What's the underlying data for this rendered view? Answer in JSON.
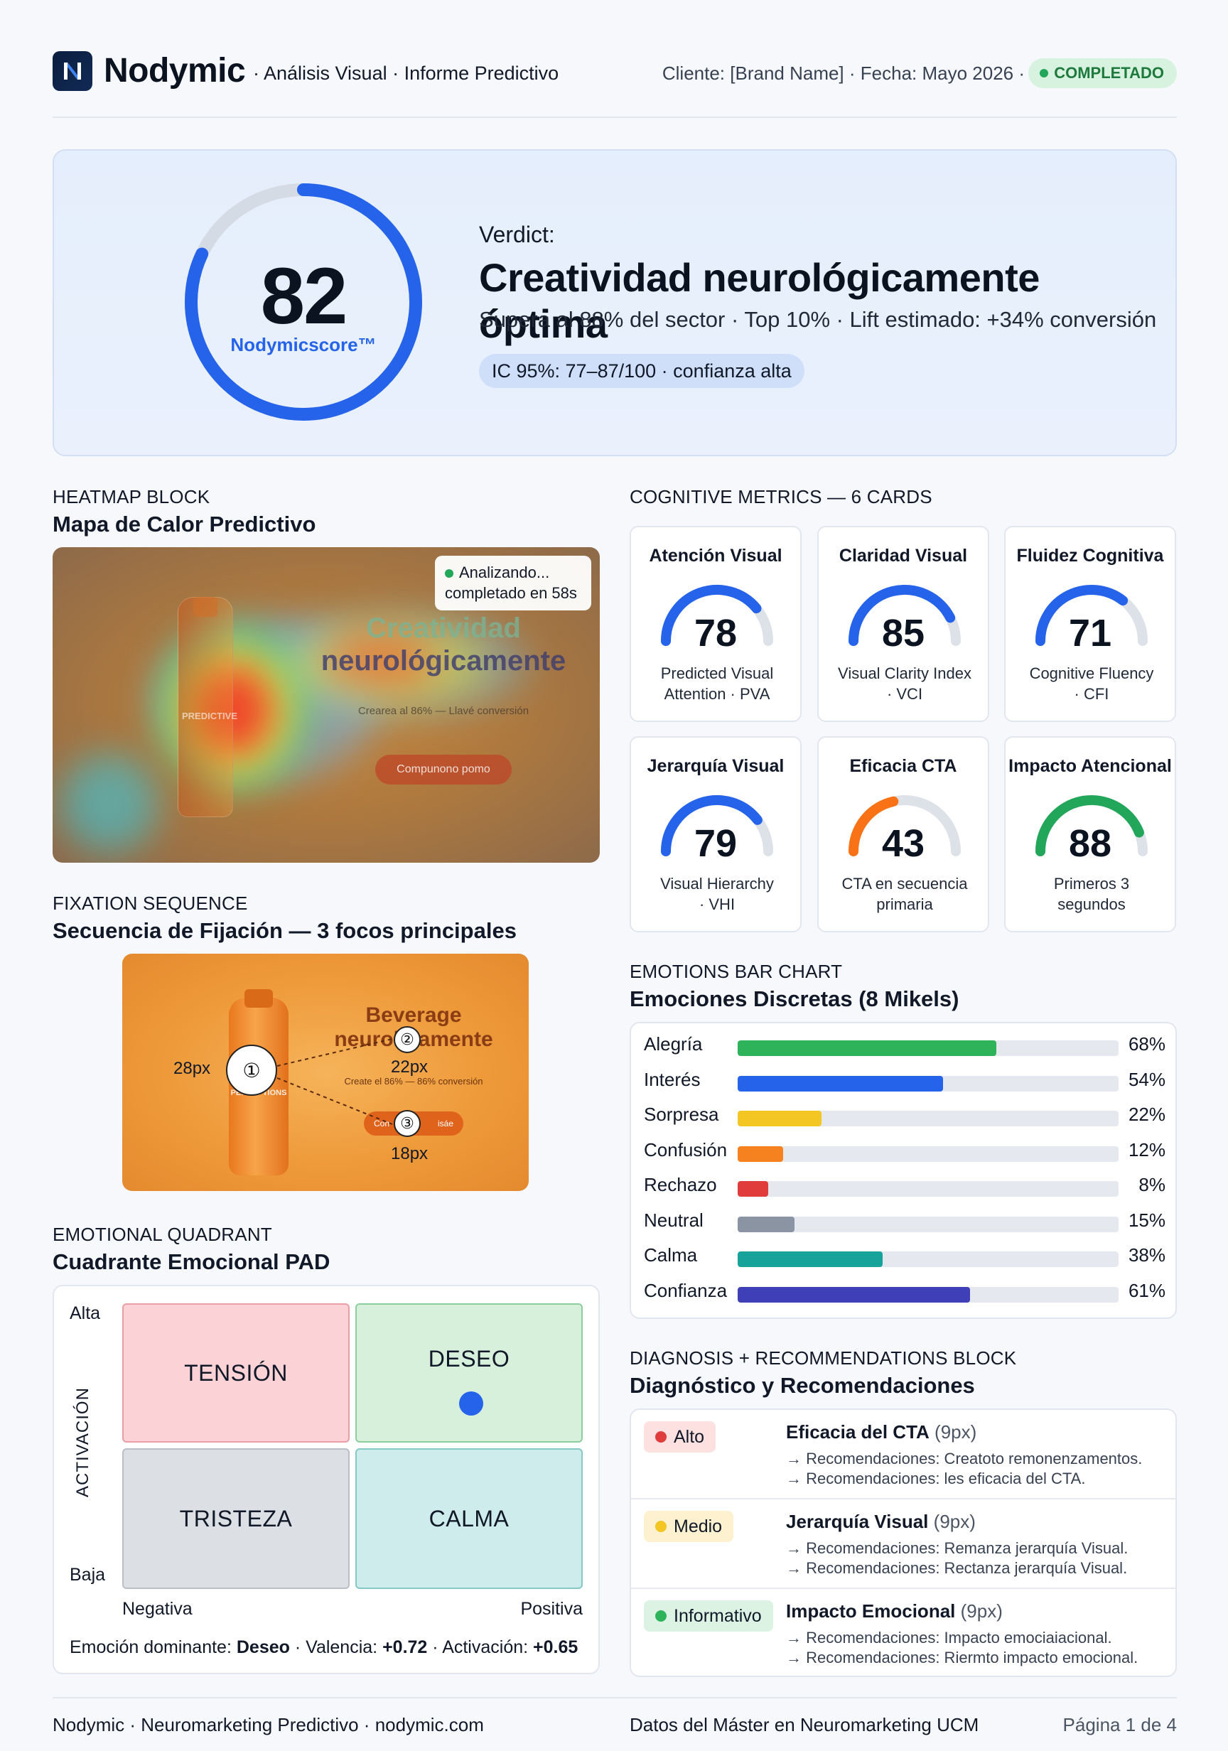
{
  "header": {
    "brand": "Nodymic",
    "subtitle": "· Análisis Visual · Informe Predictivo",
    "meta": "Cliente: [Brand Name] · Fecha: Mayo 2026 ·",
    "status": "COMPLETADO",
    "status_color": "#1d7a3c"
  },
  "hero": {
    "score": "82",
    "score_value": 82,
    "score_label": "Nodymicscore™",
    "verdict_label": "Verdict:",
    "verdict_title": "Creatividad neurológicamente óptima",
    "verdict_sub": "Supera al 88% del sector · Top 10% · Lift estimado: +34% conversión",
    "ci": "IC 95%: 77–87/100 · confianza alta",
    "accent": "#2563eb"
  },
  "heatmap": {
    "eyebrow": "HEATMAP BLOCK",
    "title": "Mapa de Calor Predictivo",
    "analyzing_line1": "Analizando...",
    "analyzing_line2": "completado en 58s",
    "ad_headline_1": "Creatividad",
    "ad_headline_2": "neurológicamente",
    "ad_subline": "Crearea al 86% — Llavé conversión",
    "ad_button": "Compunono pomo",
    "ad_bottle_text": "PREDICTIVE"
  },
  "fixation": {
    "eyebrow": "FIXATION SEQUENCE",
    "title": "Secuencia de Fijación — 3 focos principales",
    "ad_headline_1": "Beverage",
    "ad_headline_2": "neurolo amente",
    "ad_subline": "Create el 86% — 86% conversión",
    "ad_button": "Con",
    "ad_button_tail": "isáe",
    "ad_bottle_text": "PERCEPTIONS",
    "points": [
      {
        "num": "①",
        "label": "28px"
      },
      {
        "num": "②",
        "label": "22px"
      },
      {
        "num": "③",
        "label": "18px"
      }
    ]
  },
  "quadrant": {
    "eyebrow": "EMOTIONAL QUADRANT",
    "title": "Cuadrante Emocional PAD",
    "cells": {
      "tl": "TENSIÓN",
      "tr": "DESEO",
      "bl": "TRISTEZA",
      "br": "CALMA"
    },
    "y_high": "Alta",
    "y_low": "Baja",
    "y_axis": "ACTIVACIÓN",
    "x_low": "Negativa",
    "x_high": "Positiva",
    "summary_label_1": "Emoción dominante:",
    "summary_value_1": "Deseo",
    "summary_label_2": "· Valencia:",
    "summary_value_2": "+0.72",
    "summary_label_3": "· Activación:",
    "summary_value_3": "+0.65"
  },
  "metrics": {
    "eyebrow": "COGNITIVE METRICS — 6 CARDS",
    "cards": [
      {
        "title": "Atención Visual",
        "value": "78",
        "v": 78,
        "sub1": "Predicted Visual",
        "sub2": "Attention · PVA",
        "color": "#2563eb"
      },
      {
        "title": "Claridad Visual",
        "value": "85",
        "v": 85,
        "sub1": "Visual Clarity Index",
        "sub2": "· VCI",
        "color": "#2563eb"
      },
      {
        "title": "Fluidez Cognitiva",
        "value": "71",
        "v": 71,
        "sub1": "Cognitive Fluency",
        "sub2": "· CFI",
        "color": "#2563eb"
      },
      {
        "title": "Jerarquía Visual",
        "value": "79",
        "v": 79,
        "sub1": "Visual Hierarchy",
        "sub2": "· VHI",
        "color": "#2563eb"
      },
      {
        "title": "Eficacia CTA",
        "value": "43",
        "v": 43,
        "sub1": "CTA en secuencia",
        "sub2": "primaria",
        "color": "#f97316"
      },
      {
        "title": "Impacto Atencional",
        "value": "88",
        "v": 88,
        "sub1": "Primeros 3",
        "sub2": "segundos",
        "color": "#22a65a"
      }
    ]
  },
  "emotions": {
    "eyebrow": "EMOTIONS BAR CHART",
    "title": "Emociones Discretas (8 Mikels)",
    "items": [
      {
        "name": "Alegría",
        "value": 68,
        "label": "68%",
        "color": "#2fb35a"
      },
      {
        "name": "Interés",
        "value": 54,
        "label": "54%",
        "color": "#2563eb"
      },
      {
        "name": "Sorpresa",
        "value": 22,
        "label": "22%",
        "color": "#f3c623"
      },
      {
        "name": "Confusión",
        "value": 12,
        "label": "12%",
        "color": "#f5821f"
      },
      {
        "name": "Rechazo",
        "value": 8,
        "label": "8%",
        "color": "#e03c3c"
      },
      {
        "name": "Neutral",
        "value": 15,
        "label": "15%",
        "color": "#8a94a3"
      },
      {
        "name": "Calma",
        "value": 38,
        "label": "38%",
        "color": "#17a29a"
      },
      {
        "name": "Confianza",
        "value": 61,
        "label": "61%",
        "color": "#3f3fb8"
      }
    ]
  },
  "diagnosis": {
    "eyebrow": "DIAGNOSIS + RECOMMENDATIONS BLOCK",
    "title": "Diagnóstico y Recomendaciones",
    "rows": [
      {
        "level": "Alto",
        "level_color": "#e03c3c",
        "pill_bg": "#fde0e0",
        "title": "Eficacia del CTA",
        "tag": "(9px)",
        "rec1": "→ Recomendaciones: Creatoto remonenzamentos.",
        "rec2": "→ Recomendaciones: les eficacia del CTA."
      },
      {
        "level": "Medio",
        "level_color": "#f3c623",
        "pill_bg": "#fdf1cf",
        "title": "Jerarquía Visual",
        "tag": "(9px)",
        "rec1": "→ Recomendaciones: Remanza jerarquía Visual.",
        "rec2": "→ Recomendaciones: Rectanza jerarquía Visual."
      },
      {
        "level": "Informativo",
        "level_color": "#2fb35a",
        "pill_bg": "#dcf3e3",
        "title": "Impacto Emocional",
        "tag": "(9px)",
        "rec1": "→ Recomendaciones: Impacto emociaiacional.",
        "rec2": "→ Recomendaciones: Riermto impacto emocional."
      }
    ]
  },
  "footer": {
    "left": "Nodymic · Neuromarketing Predictivo · nodymic.com",
    "center": "Datos del Máster en Neuromarketing UCM",
    "right": "Página 1 de 4"
  }
}
